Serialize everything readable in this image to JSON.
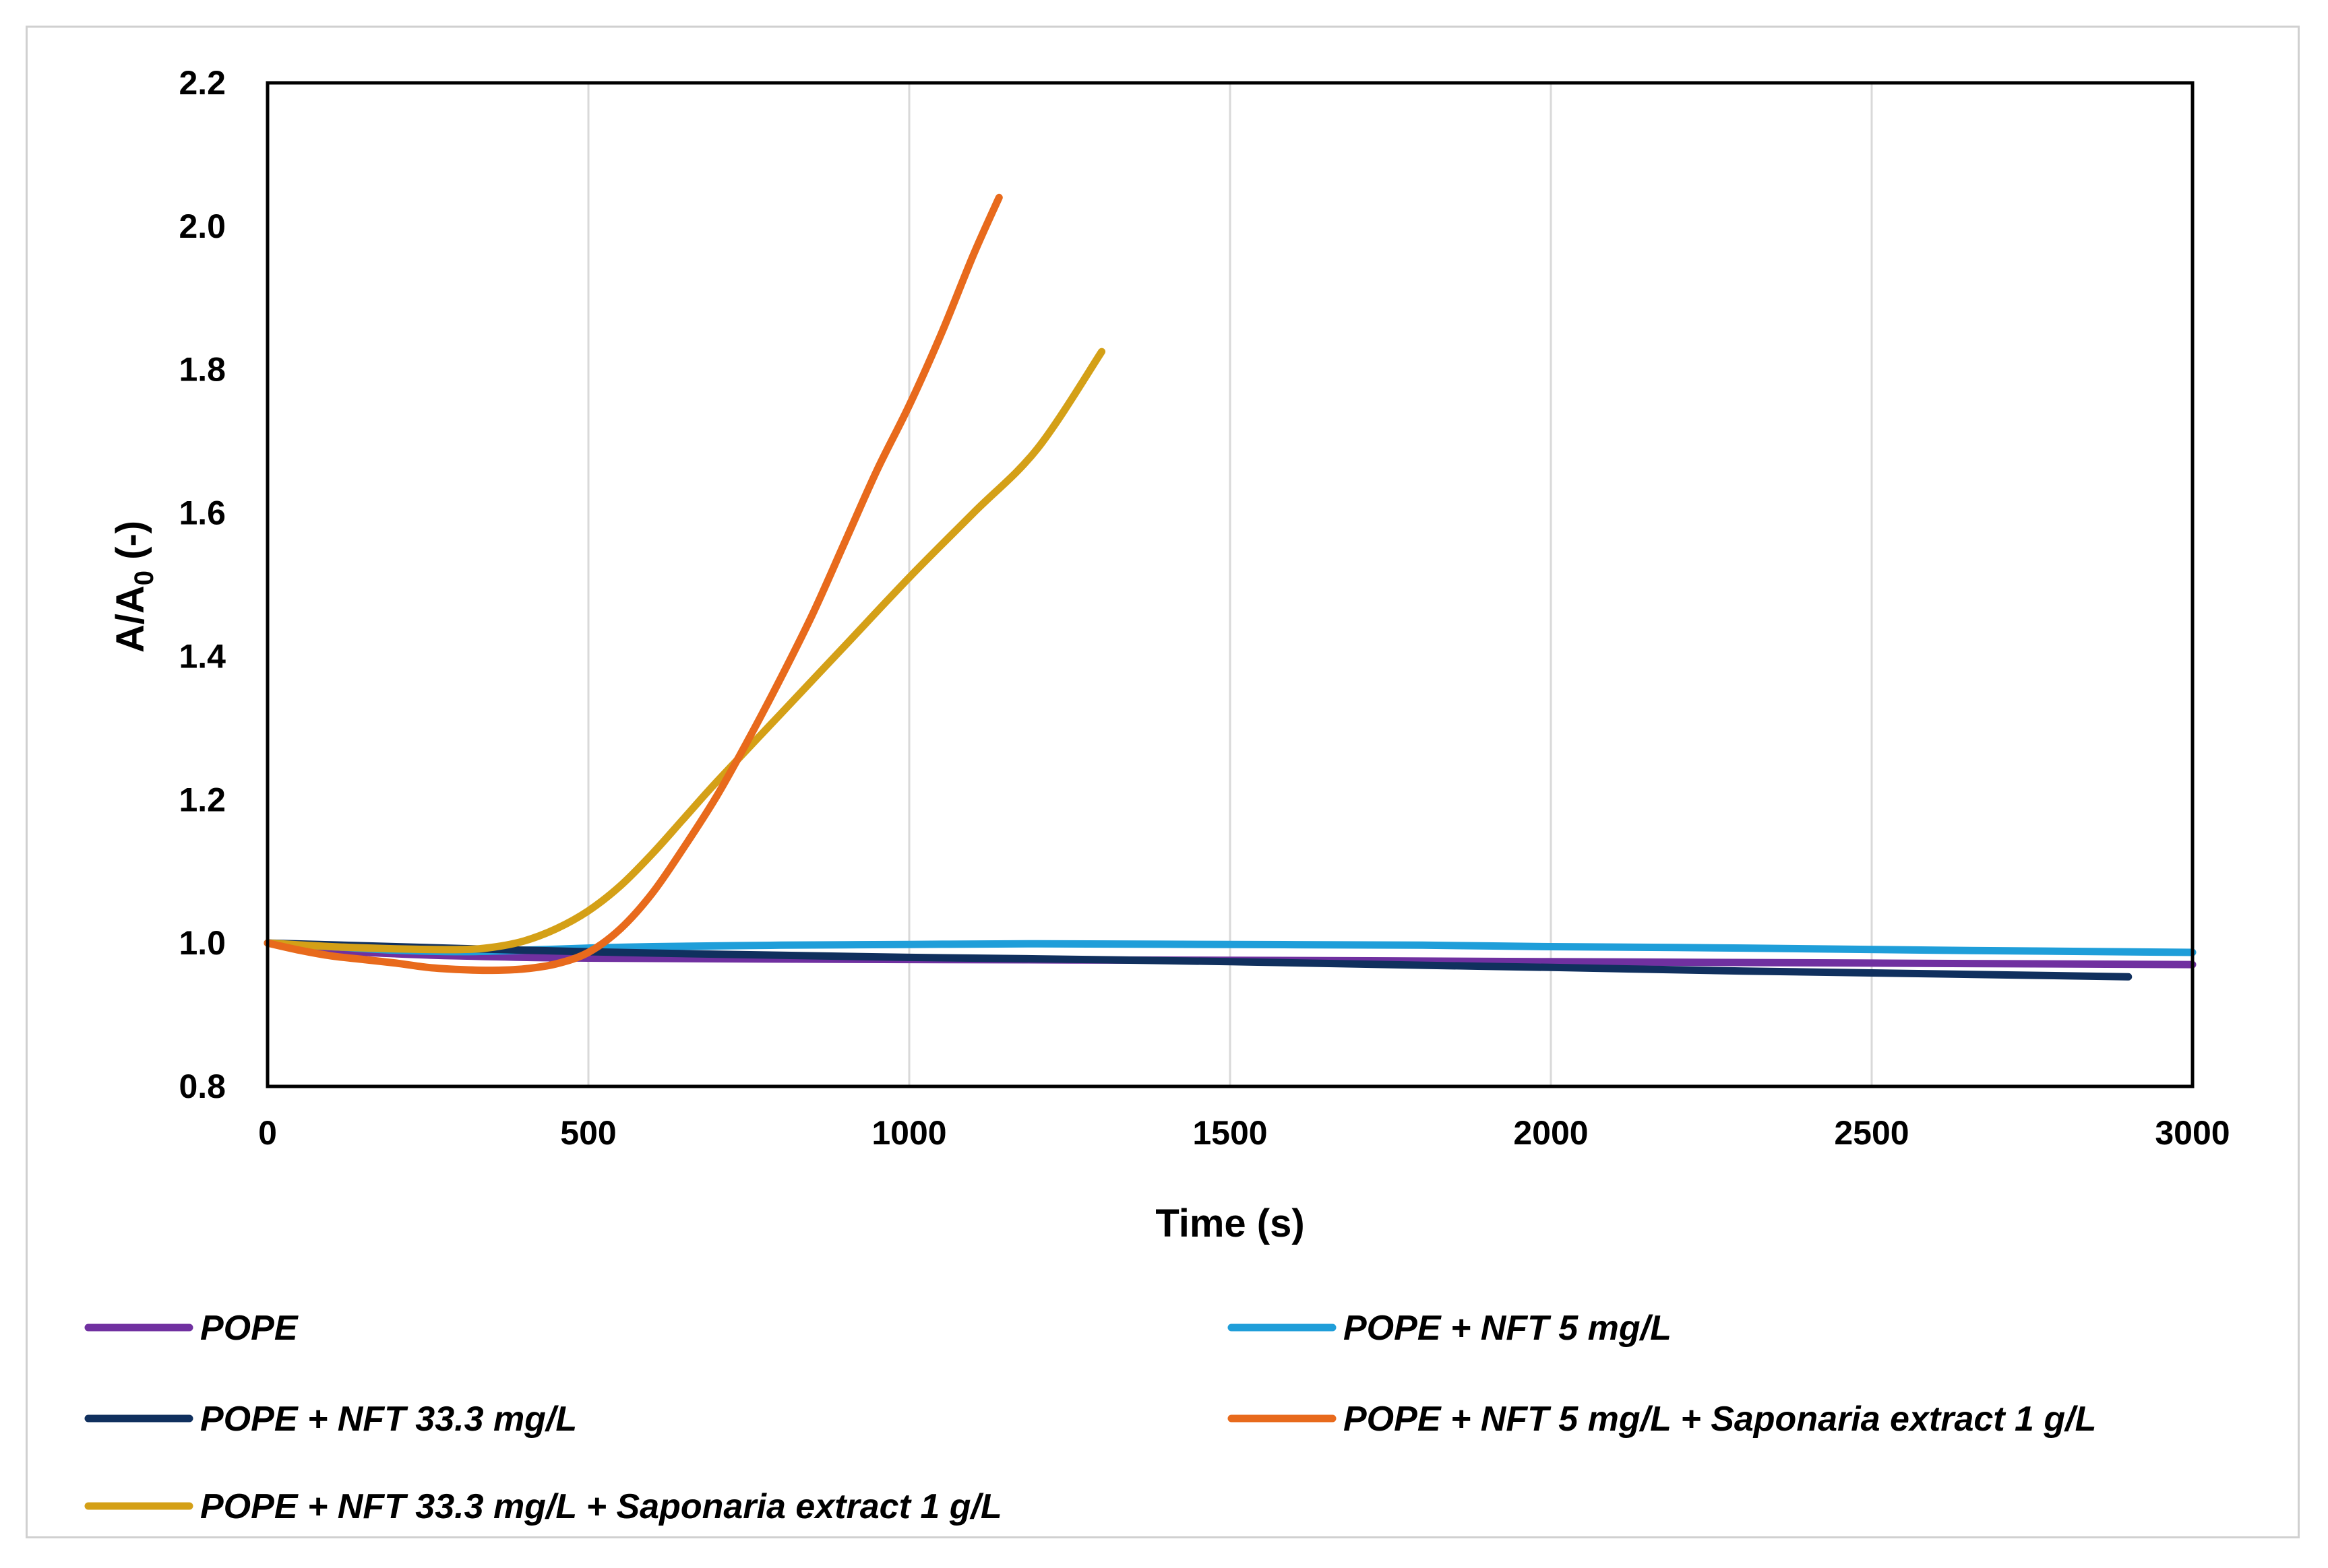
{
  "chart_data": {
    "type": "line",
    "title": "",
    "xlabel": "Time (s)",
    "ylabel": "A/A",
    "ylabel_subscript": "0",
    "ylabel_suffix": " (-)",
    "xlim": [
      0,
      3000
    ],
    "ylim": [
      0.8,
      2.2
    ],
    "xticks": [
      0,
      500,
      1000,
      1500,
      2000,
      2500,
      3000
    ],
    "xtick_labels": [
      "0",
      "500",
      "1000",
      "1500",
      "2000",
      "2500",
      "3000"
    ],
    "yticks": [
      0.8,
      1.0,
      1.2,
      1.4,
      1.6,
      1.8,
      2.0,
      2.2
    ],
    "ytick_labels": [
      "0.8",
      "1.0",
      "1.2",
      "1.4",
      "1.6",
      "1.8",
      "2.0",
      "2.2"
    ],
    "grid": "vertical",
    "legend_position": "bottom",
    "series": [
      {
        "name": "POPE",
        "color": "#7030a0",
        "x": [
          0,
          100,
          200,
          300,
          500,
          1000,
          1500,
          2000,
          2500,
          3000
        ],
        "y": [
          1.0,
          0.99,
          0.985,
          0.982,
          0.979,
          0.977,
          0.976,
          0.974,
          0.972,
          0.97
        ]
      },
      {
        "name": "POPE + NFT 5 mg/L",
        "color": "#1f9ed9",
        "x": [
          0,
          100,
          200,
          300,
          400,
          500,
          600,
          800,
          1000,
          1200,
          1500,
          1800,
          2000,
          2300,
          2600,
          3000
        ],
        "y": [
          1.0,
          0.995,
          0.99,
          0.988,
          0.99,
          0.993,
          0.995,
          0.997,
          0.998,
          0.999,
          0.998,
          0.997,
          0.995,
          0.993,
          0.99,
          0.987
        ]
      },
      {
        "name": "POPE + NFT 33.3 mg/L",
        "color": "#10305e",
        "x": [
          0,
          200,
          400,
          600,
          800,
          1000,
          1200,
          1500,
          1800,
          2000,
          2300,
          2600,
          2900
        ],
        "y": [
          1.0,
          0.995,
          0.99,
          0.986,
          0.983,
          0.98,
          0.978,
          0.974,
          0.969,
          0.966,
          0.961,
          0.957,
          0.953
        ]
      },
      {
        "name": "POPE + NFT 5 mg/L + Saponaria extract 1 g/L",
        "color": "#e86a1c",
        "x": [
          0,
          50,
          100,
          150,
          200,
          250,
          300,
          350,
          400,
          450,
          500,
          550,
          600,
          650,
          700,
          750,
          800,
          850,
          900,
          950,
          1000,
          1050,
          1100,
          1140
        ],
        "y": [
          1.0,
          0.99,
          0.982,
          0.977,
          0.972,
          0.966,
          0.963,
          0.962,
          0.964,
          0.971,
          0.987,
          1.02,
          1.07,
          1.135,
          1.205,
          1.285,
          1.37,
          1.46,
          1.56,
          1.66,
          1.75,
          1.85,
          1.96,
          2.04
        ]
      },
      {
        "name": "POPE + NFT 33.3 mg/L + Saponaria extract 1 g/L",
        "color": "#d4a017",
        "x": [
          0,
          100,
          200,
          300,
          350,
          400,
          450,
          500,
          550,
          600,
          650,
          700,
          800,
          900,
          1000,
          1100,
          1200,
          1300
        ],
        "y": [
          1.0,
          0.995,
          0.992,
          0.991,
          0.994,
          1.003,
          1.02,
          1.045,
          1.08,
          1.125,
          1.175,
          1.225,
          1.32,
          1.415,
          1.51,
          1.6,
          1.69,
          1.825
        ]
      }
    ]
  }
}
